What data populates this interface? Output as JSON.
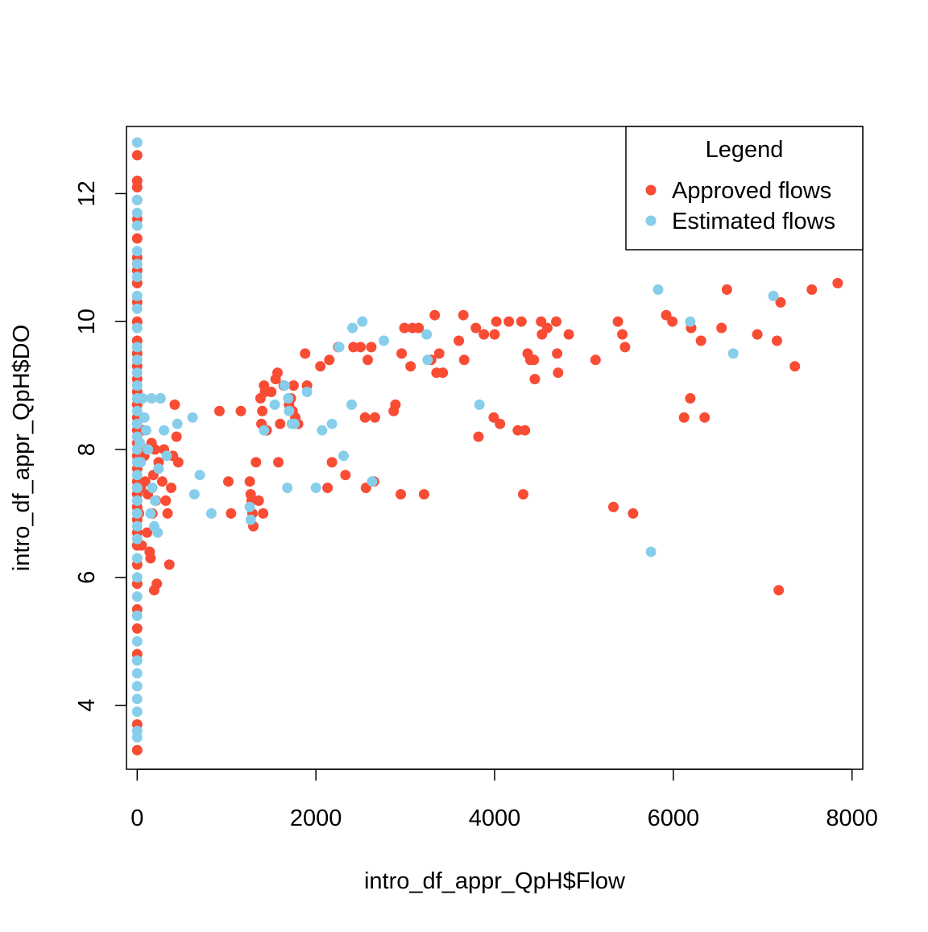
{
  "chart_data": {
    "type": "scatter",
    "title": "",
    "xlabel": "intro_df_appr_QpH$Flow",
    "ylabel": "intro_df_appr_QpH$DO",
    "xlim": [
      -120,
      8120
    ],
    "ylim": [
      3.0,
      13.05
    ],
    "x_ticks": [
      0,
      2000,
      4000,
      6000,
      8000
    ],
    "x_tick_labels": [
      "0",
      "2000",
      "4000",
      "6000",
      "8000"
    ],
    "y_ticks": [
      4,
      6,
      8,
      10,
      12
    ],
    "y_tick_labels": [
      "4",
      "6",
      "8",
      "10",
      "12"
    ],
    "grid": false,
    "legend": {
      "title": "Legend",
      "position": "top-right",
      "entries": [
        "Approved flows",
        "Estimated flows"
      ]
    },
    "series": [
      {
        "name": "Approved flows",
        "color": "#F84C34",
        "points": [
          [
            0,
            3.3
          ],
          [
            0,
            3.7
          ],
          [
            0,
            4.8
          ],
          [
            0,
            5.2
          ],
          [
            0,
            5.5
          ],
          [
            0,
            5.9
          ],
          [
            0,
            6.2
          ],
          [
            0,
            6.5
          ],
          [
            0,
            6.7
          ],
          [
            0,
            6.9
          ],
          [
            0,
            7.1
          ],
          [
            0,
            7.3
          ],
          [
            0,
            7.5
          ],
          [
            0,
            7.7
          ],
          [
            0,
            7.9
          ],
          [
            0,
            8.1
          ],
          [
            0,
            8.3
          ],
          [
            0,
            8.5
          ],
          [
            0,
            8.7
          ],
          [
            0,
            8.9
          ],
          [
            0,
            9.1
          ],
          [
            0,
            9.3
          ],
          [
            0,
            9.5
          ],
          [
            0,
            9.7
          ],
          [
            0,
            10.0
          ],
          [
            0,
            10.3
          ],
          [
            0,
            10.6
          ],
          [
            0,
            10.8
          ],
          [
            0,
            11.0
          ],
          [
            0,
            11.3
          ],
          [
            0,
            11.6
          ],
          [
            0,
            11.9
          ],
          [
            0,
            12.1
          ],
          [
            0,
            12.2
          ],
          [
            0,
            12.6
          ],
          [
            20,
            7.0
          ],
          [
            40,
            7.4
          ],
          [
            50,
            6.5
          ],
          [
            60,
            8.3
          ],
          [
            70,
            8.0
          ],
          [
            80,
            7.9
          ],
          [
            90,
            7.5
          ],
          [
            100,
            8.0
          ],
          [
            110,
            6.7
          ],
          [
            120,
            7.3
          ],
          [
            140,
            6.4
          ],
          [
            150,
            6.3
          ],
          [
            160,
            8.1
          ],
          [
            170,
            7.0
          ],
          [
            180,
            7.6
          ],
          [
            190,
            5.8
          ],
          [
            200,
            8.0
          ],
          [
            210,
            7.2
          ],
          [
            220,
            5.9
          ],
          [
            240,
            7.8
          ],
          [
            260,
            8.8
          ],
          [
            280,
            7.5
          ],
          [
            300,
            8.0
          ],
          [
            320,
            7.2
          ],
          [
            340,
            7.0
          ],
          [
            360,
            6.2
          ],
          [
            380,
            7.4
          ],
          [
            400,
            7.9
          ],
          [
            420,
            8.7
          ],
          [
            440,
            8.2
          ],
          [
            460,
            7.8
          ],
          [
            920,
            8.6
          ],
          [
            1020,
            7.5
          ],
          [
            1050,
            7.0
          ],
          [
            1160,
            8.6
          ],
          [
            1260,
            7.5
          ],
          [
            1270,
            7.3
          ],
          [
            1280,
            7.2
          ],
          [
            1290,
            7.0
          ],
          [
            1300,
            6.8
          ],
          [
            1330,
            7.8
          ],
          [
            1360,
            7.2
          ],
          [
            1380,
            8.8
          ],
          [
            1390,
            8.4
          ],
          [
            1400,
            8.6
          ],
          [
            1410,
            7.0
          ],
          [
            1420,
            9.0
          ],
          [
            1430,
            8.9
          ],
          [
            1450,
            8.3
          ],
          [
            1500,
            8.9
          ],
          [
            1550,
            9.1
          ],
          [
            1570,
            9.2
          ],
          [
            1580,
            7.8
          ],
          [
            1600,
            8.4
          ],
          [
            1640,
            9.0
          ],
          [
            1700,
            8.7
          ],
          [
            1720,
            8.8
          ],
          [
            1740,
            8.6
          ],
          [
            1750,
            9.0
          ],
          [
            1770,
            8.5
          ],
          [
            1800,
            8.4
          ],
          [
            1880,
            9.5
          ],
          [
            1900,
            9.0
          ],
          [
            2050,
            9.3
          ],
          [
            2130,
            7.4
          ],
          [
            2150,
            9.4
          ],
          [
            2180,
            7.8
          ],
          [
            2250,
            9.6
          ],
          [
            2330,
            7.6
          ],
          [
            2420,
            9.6
          ],
          [
            2500,
            9.6
          ],
          [
            2550,
            8.5
          ],
          [
            2560,
            7.4
          ],
          [
            2580,
            9.4
          ],
          [
            2620,
            9.6
          ],
          [
            2650,
            7.5
          ],
          [
            2660,
            8.5
          ],
          [
            2870,
            8.6
          ],
          [
            2890,
            8.7
          ],
          [
            2950,
            7.3
          ],
          [
            2960,
            9.5
          ],
          [
            2990,
            9.9
          ],
          [
            3060,
            9.3
          ],
          [
            3080,
            9.9
          ],
          [
            3150,
            9.9
          ],
          [
            3210,
            7.3
          ],
          [
            3290,
            9.4
          ],
          [
            3330,
            10.1
          ],
          [
            3350,
            9.2
          ],
          [
            3380,
            9.5
          ],
          [
            3420,
            9.2
          ],
          [
            3600,
            9.7
          ],
          [
            3650,
            10.1
          ],
          [
            3660,
            9.4
          ],
          [
            3790,
            9.9
          ],
          [
            3820,
            8.2
          ],
          [
            3880,
            9.8
          ],
          [
            3990,
            8.5
          ],
          [
            4000,
            9.8
          ],
          [
            4020,
            10.0
          ],
          [
            4060,
            8.4
          ],
          [
            4160,
            10.0
          ],
          [
            4260,
            8.3
          ],
          [
            4300,
            10.0
          ],
          [
            4320,
            7.3
          ],
          [
            4340,
            8.3
          ],
          [
            4370,
            9.5
          ],
          [
            4400,
            9.4
          ],
          [
            4440,
            9.4
          ],
          [
            4450,
            9.1
          ],
          [
            4520,
            10.0
          ],
          [
            4530,
            9.8
          ],
          [
            4590,
            9.9
          ],
          [
            4690,
            10.0
          ],
          [
            4700,
            9.5
          ],
          [
            4710,
            9.2
          ],
          [
            4830,
            9.8
          ],
          [
            5130,
            9.4
          ],
          [
            5330,
            7.1
          ],
          [
            5380,
            10.0
          ],
          [
            5430,
            9.8
          ],
          [
            5460,
            9.6
          ],
          [
            5550,
            7.0
          ],
          [
            5920,
            10.1
          ],
          [
            5990,
            10.0
          ],
          [
            6120,
            8.5
          ],
          [
            6190,
            8.8
          ],
          [
            6200,
            9.9
          ],
          [
            6310,
            9.7
          ],
          [
            6350,
            8.5
          ],
          [
            6540,
            9.9
          ],
          [
            6600,
            10.5
          ],
          [
            6940,
            9.8
          ],
          [
            7160,
            9.7
          ],
          [
            7180,
            5.8
          ],
          [
            7200,
            10.3
          ],
          [
            7360,
            9.3
          ],
          [
            7550,
            10.5
          ],
          [
            7840,
            10.6
          ]
        ]
      },
      {
        "name": "Estimated flows",
        "color": "#87CEEB",
        "points": [
          [
            0,
            3.5
          ],
          [
            0,
            3.6
          ],
          [
            0,
            3.9
          ],
          [
            0,
            4.1
          ],
          [
            0,
            4.3
          ],
          [
            0,
            4.5
          ],
          [
            0,
            4.7
          ],
          [
            0,
            5.0
          ],
          [
            0,
            5.4
          ],
          [
            0,
            5.7
          ],
          [
            0,
            6.0
          ],
          [
            0,
            6.3
          ],
          [
            0,
            6.6
          ],
          [
            0,
            6.8
          ],
          [
            0,
            7.0
          ],
          [
            0,
            7.2
          ],
          [
            0,
            7.4
          ],
          [
            0,
            7.6
          ],
          [
            0,
            7.8
          ],
          [
            0,
            8.0
          ],
          [
            0,
            8.2
          ],
          [
            0,
            8.4
          ],
          [
            0,
            8.6
          ],
          [
            0,
            8.8
          ],
          [
            0,
            9.0
          ],
          [
            0,
            9.2
          ],
          [
            0,
            9.4
          ],
          [
            0,
            9.6
          ],
          [
            0,
            9.9
          ],
          [
            0,
            10.2
          ],
          [
            0,
            10.4
          ],
          [
            0,
            10.7
          ],
          [
            0,
            10.9
          ],
          [
            0,
            11.1
          ],
          [
            0,
            11.5
          ],
          [
            0,
            11.7
          ],
          [
            0,
            11.9
          ],
          [
            0,
            12.8
          ],
          [
            30,
            8.1
          ],
          [
            40,
            7.8
          ],
          [
            60,
            8.8
          ],
          [
            80,
            8.5
          ],
          [
            100,
            8.3
          ],
          [
            120,
            8.0
          ],
          [
            150,
            7.0
          ],
          [
            160,
            8.8
          ],
          [
            170,
            7.4
          ],
          [
            190,
            6.8
          ],
          [
            200,
            7.2
          ],
          [
            230,
            6.7
          ],
          [
            240,
            7.7
          ],
          [
            260,
            8.8
          ],
          [
            300,
            8.3
          ],
          [
            330,
            7.9
          ],
          [
            450,
            8.4
          ],
          [
            620,
            8.5
          ],
          [
            640,
            7.3
          ],
          [
            700,
            7.6
          ],
          [
            830,
            7.0
          ],
          [
            1260,
            7.1
          ],
          [
            1270,
            6.9
          ],
          [
            1420,
            8.3
          ],
          [
            1540,
            8.7
          ],
          [
            1650,
            9.0
          ],
          [
            1680,
            7.4
          ],
          [
            1690,
            8.8
          ],
          [
            1700,
            8.6
          ],
          [
            1730,
            8.4
          ],
          [
            1760,
            8.4
          ],
          [
            1900,
            8.9
          ],
          [
            2000,
            7.4
          ],
          [
            2070,
            8.3
          ],
          [
            2180,
            8.4
          ],
          [
            2260,
            9.6
          ],
          [
            2310,
            7.9
          ],
          [
            2400,
            8.7
          ],
          [
            2410,
            9.9
          ],
          [
            2520,
            10.0
          ],
          [
            2630,
            7.5
          ],
          [
            2760,
            9.7
          ],
          [
            3240,
            9.8
          ],
          [
            3250,
            9.4
          ],
          [
            3830,
            8.7
          ],
          [
            5750,
            6.4
          ],
          [
            5830,
            10.5
          ],
          [
            6190,
            10.0
          ],
          [
            6670,
            9.5
          ],
          [
            7120,
            10.4
          ]
        ]
      }
    ]
  }
}
